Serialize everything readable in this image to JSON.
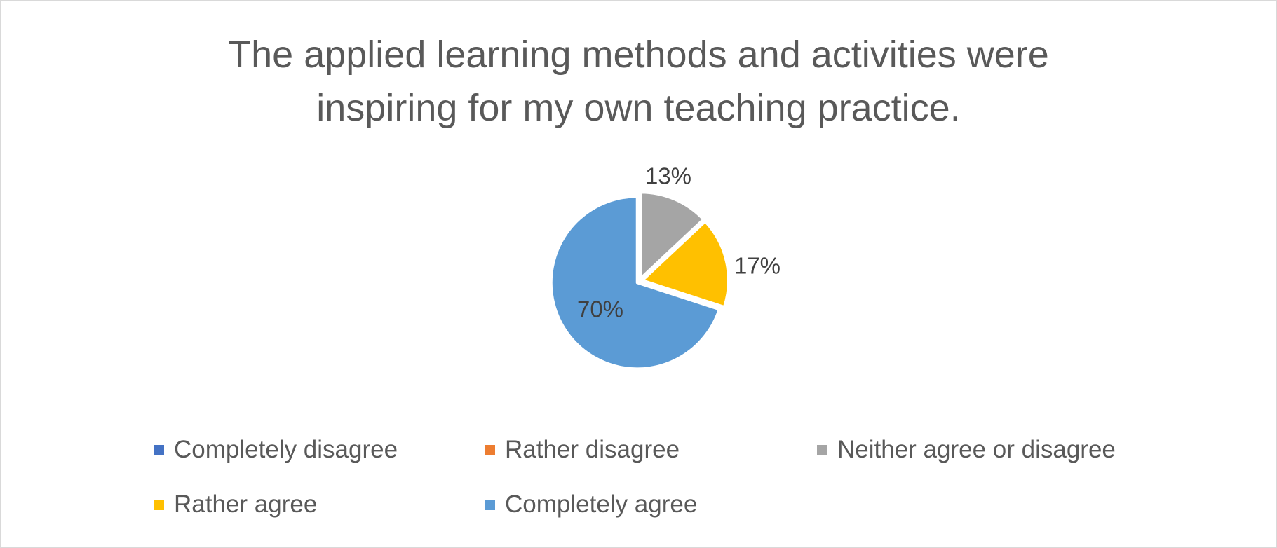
{
  "chart_data": {
    "type": "pie",
    "title_lines": [
      "The applied learning methods and activities were",
      "inspiring for my own teaching practice."
    ],
    "categories": [
      "Completely disagree",
      "Rather disagree",
      "Neither agree or disagree",
      "Rather agree",
      "Completely agree"
    ],
    "values": [
      0,
      0,
      13,
      17,
      70
    ],
    "labels": [
      "",
      "",
      "13%",
      "17%",
      "70%"
    ],
    "colors": [
      "#4472c4",
      "#ed7d31",
      "#a5a5a5",
      "#ffc000",
      "#5b9bd5"
    ],
    "legend_position": "bottom",
    "exploded": true
  }
}
